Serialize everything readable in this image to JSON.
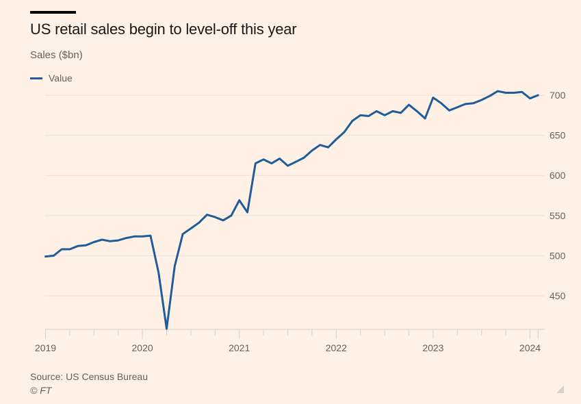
{
  "header": {
    "title": "US retail sales begin to level-off this year",
    "subtitle": "Sales ($bn)"
  },
  "legend": {
    "items": [
      {
        "label": "Value",
        "color": "#1f5c99"
      }
    ]
  },
  "footer": {
    "source": "Source: US Census Bureau",
    "credit": "© FT"
  },
  "chart_data": {
    "type": "line",
    "title": "US retail sales begin to level-off this year",
    "ylabel": "Sales ($bn)",
    "xlabel": "",
    "ylim": [
      405,
      710
    ],
    "yticks": [
      450,
      500,
      550,
      600,
      650,
      700
    ],
    "xticks": [
      "2019",
      "2020",
      "2021",
      "2022",
      "2023",
      "2024"
    ],
    "grid": true,
    "legend_position": "top-left",
    "x_start": "2019-01",
    "x_frequency": "monthly",
    "series": [
      {
        "name": "Value",
        "color": "#1f5c99",
        "values": [
          499,
          500,
          508,
          508,
          512,
          513,
          517,
          520,
          518,
          519,
          522,
          524,
          524,
          525,
          479,
          409,
          487,
          527,
          534,
          541,
          551,
          548,
          544,
          550,
          569,
          554,
          615,
          620,
          615,
          621,
          612,
          617,
          622,
          631,
          638,
          635,
          645,
          654,
          668,
          675,
          674,
          680,
          675,
          680,
          678,
          688,
          680,
          671,
          697,
          690,
          681,
          685,
          689,
          690,
          694,
          699,
          705,
          703,
          703,
          704,
          696,
          700
        ]
      }
    ]
  }
}
